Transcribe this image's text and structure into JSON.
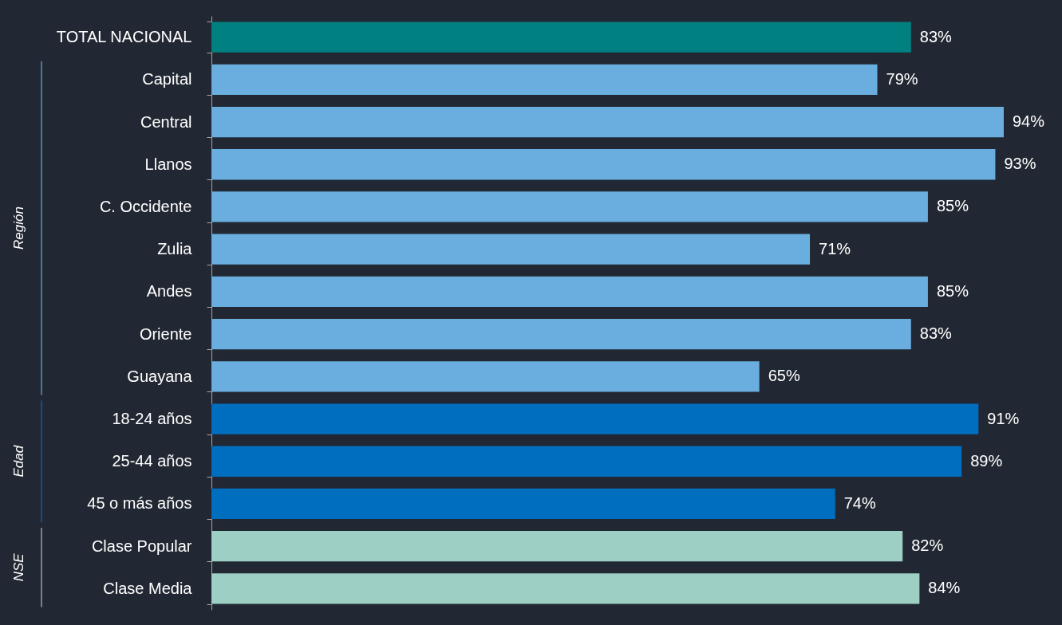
{
  "chart_data": {
    "type": "bar",
    "orientation": "horizontal",
    "tick_labels": "y",
    "categories": [
      "TOTAL NACIONAL",
      "Capital",
      "Central",
      "Llanos",
      "C. Occidente",
      "Zulia",
      "Andes",
      "Oriente",
      "Guayana",
      "18-24 años",
      "25-44 años",
      "45 o más años",
      "Clase Popular",
      "Clase Media"
    ],
    "values": [
      83,
      79,
      94,
      93,
      85,
      71,
      85,
      83,
      65,
      91,
      89,
      74,
      82,
      84
    ],
    "colors": [
      "#008080",
      "#6aaee0",
      "#6aaee0",
      "#6aaee0",
      "#6aaee0",
      "#6aaee0",
      "#6aaee0",
      "#6aaee0",
      "#6aaee0",
      "#006ebf",
      "#006ebf",
      "#006ebf",
      "#9ecfc5",
      "#9ecfc5"
    ],
    "value_labels": [
      "83%",
      "79%",
      "94%",
      "93%",
      "85%",
      "71%",
      "85%",
      "83%",
      "65%",
      "91%",
      "89%",
      "74%",
      "82%",
      "84%"
    ],
    "annotations": [
      "Región",
      "Edad",
      "NSE"
    ]
  }
}
